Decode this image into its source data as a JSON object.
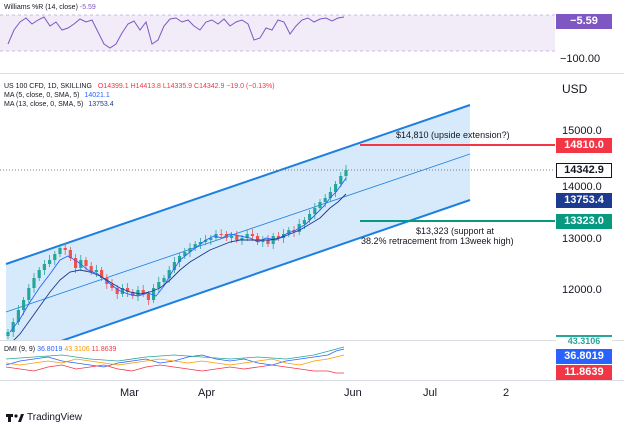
{
  "wr": {
    "label": "Williams %R (14, close)",
    "value": "-5.59",
    "tag": "−5.59",
    "axis_low": "−100.00"
  },
  "main": {
    "title": "US 100 CFD, 1D, SKILLING",
    "ohlc": "O14399.1 H14413.8 L14335.9 C14342.9 −19.0 (−0.13%)",
    "ma5": "MA (5, close, 0, SMA, 5)",
    "ma5_value": "14021.1",
    "ma13": "MA (13, close, 0, SMA, 5)",
    "ma13_value": "13753.4",
    "currency": "USD",
    "y_ticks": [
      "15000.0",
      "14000.0",
      "13000.0",
      "12000.0"
    ],
    "tags": {
      "target": "14810.0",
      "price": "14342.9",
      "ma13": "13753.4",
      "support": "13323.0"
    },
    "annotation_target": "$14,810 (upside extension?)",
    "annotation_support_1": "$13,323 (support at",
    "annotation_support_2": "38.2% retracement from 13week high)"
  },
  "dmi": {
    "label": "DMI (9, 9)",
    "v1": "36.8019",
    "v2": "43.3106",
    "v3": "11.8639",
    "tag_hidden": "43.3106",
    "tag_plus": "36.8019",
    "tag_minus": "11.8639"
  },
  "x_axis": [
    "Mar",
    "Apr",
    "Jun",
    "Jul",
    "2"
  ],
  "footer": {
    "brand": "TradingView"
  },
  "colors": {
    "channel_fill": "#cfe6fb",
    "channel_line": "#1e7fe0",
    "target_red": "#f23645",
    "support_green": "#089981",
    "wr_purple": "#7e57c2",
    "bull": "#26a69a",
    "bear": "#ef5350",
    "price_tag": "#ffffff",
    "ma13_tag": "#1c3a8f",
    "dmi_plus_blue": "#2962ff"
  }
}
